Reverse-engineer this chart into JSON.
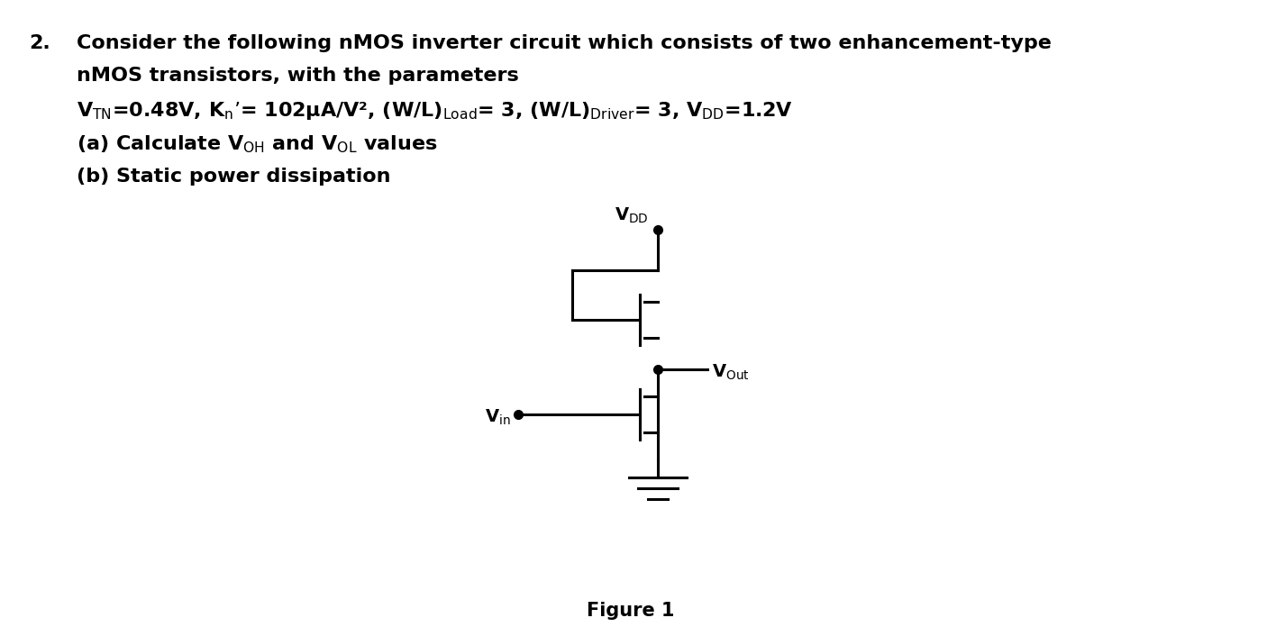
{
  "title_number": "2.",
  "text_line1": "Consider the following nMOS inverter circuit which consists of two enhancement-type",
  "text_line2": "nMOS transistors, with the parameters",
  "text_line3": "V$_{\\rm TN}$=0.48V, K$_{\\rm n}$’= 102μA/V², (W/L)$_{\\rm Load}$= 3, (W/L)$_{\\rm Driver}$= 3, V$_{\\rm DD}$=1.2V",
  "text_line4": "(a) Calculate V$_{\\rm OH}$ and V$_{\\rm OL}$ values",
  "text_line5": "(b) Static power dissipation",
  "figure_label": "Figure 1",
  "bg_color": "#ffffff",
  "fg_color": "#000000",
  "lw": 2.2,
  "fontsize_text": 16,
  "fontsize_circuit": 14
}
